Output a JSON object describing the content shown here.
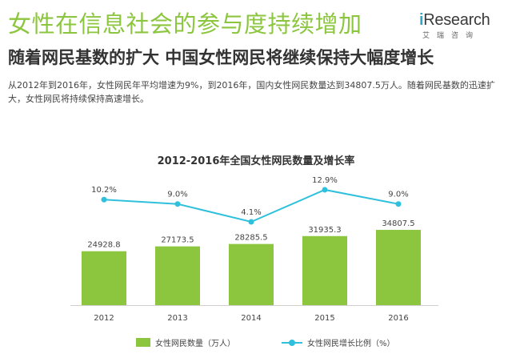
{
  "header": {
    "title": "女性在信息社会的参与度持续增加",
    "subtitle": "随着网民基数的扩大 中国女性网民将继续保持大幅度增长",
    "description": "从2012年到2016年，女性网民年平均增速为9%，到2016年，国内女性网民数量达到34807.5万人。随着网民基数的迅速扩大，女性网民将持续保持高速增长。"
  },
  "logo": {
    "brand_i": "i",
    "brand_rest": "Research",
    "sub": "艾瑞咨询"
  },
  "colors": {
    "title": "#8cc63f",
    "bar": "#8cc63f",
    "line": "#2ec0dc",
    "brand_i": "#2fa7c9"
  },
  "chart_data": {
    "type": "bar+line",
    "title": "2012-2016年全国女性网民数量及增长率",
    "categories": [
      "2012",
      "2013",
      "2014",
      "2015",
      "2016"
    ],
    "series": [
      {
        "name": "女性网民数量（万人）",
        "type": "bar",
        "values": [
          24928.8,
          27173.5,
          28285.5,
          31935.3,
          34807.5
        ],
        "labels": [
          "24928.8",
          "27173.5",
          "28285.5",
          "31935.3",
          "34807.5"
        ]
      },
      {
        "name": "女性网民增长比例（%）",
        "type": "line",
        "values": [
          10.2,
          9.0,
          4.1,
          12.9,
          9.0
        ],
        "labels": [
          "10.2%",
          "9.0%",
          "4.1%",
          "12.9%",
          "9.0%"
        ]
      }
    ],
    "legend_position": "bottom",
    "grid": false
  }
}
